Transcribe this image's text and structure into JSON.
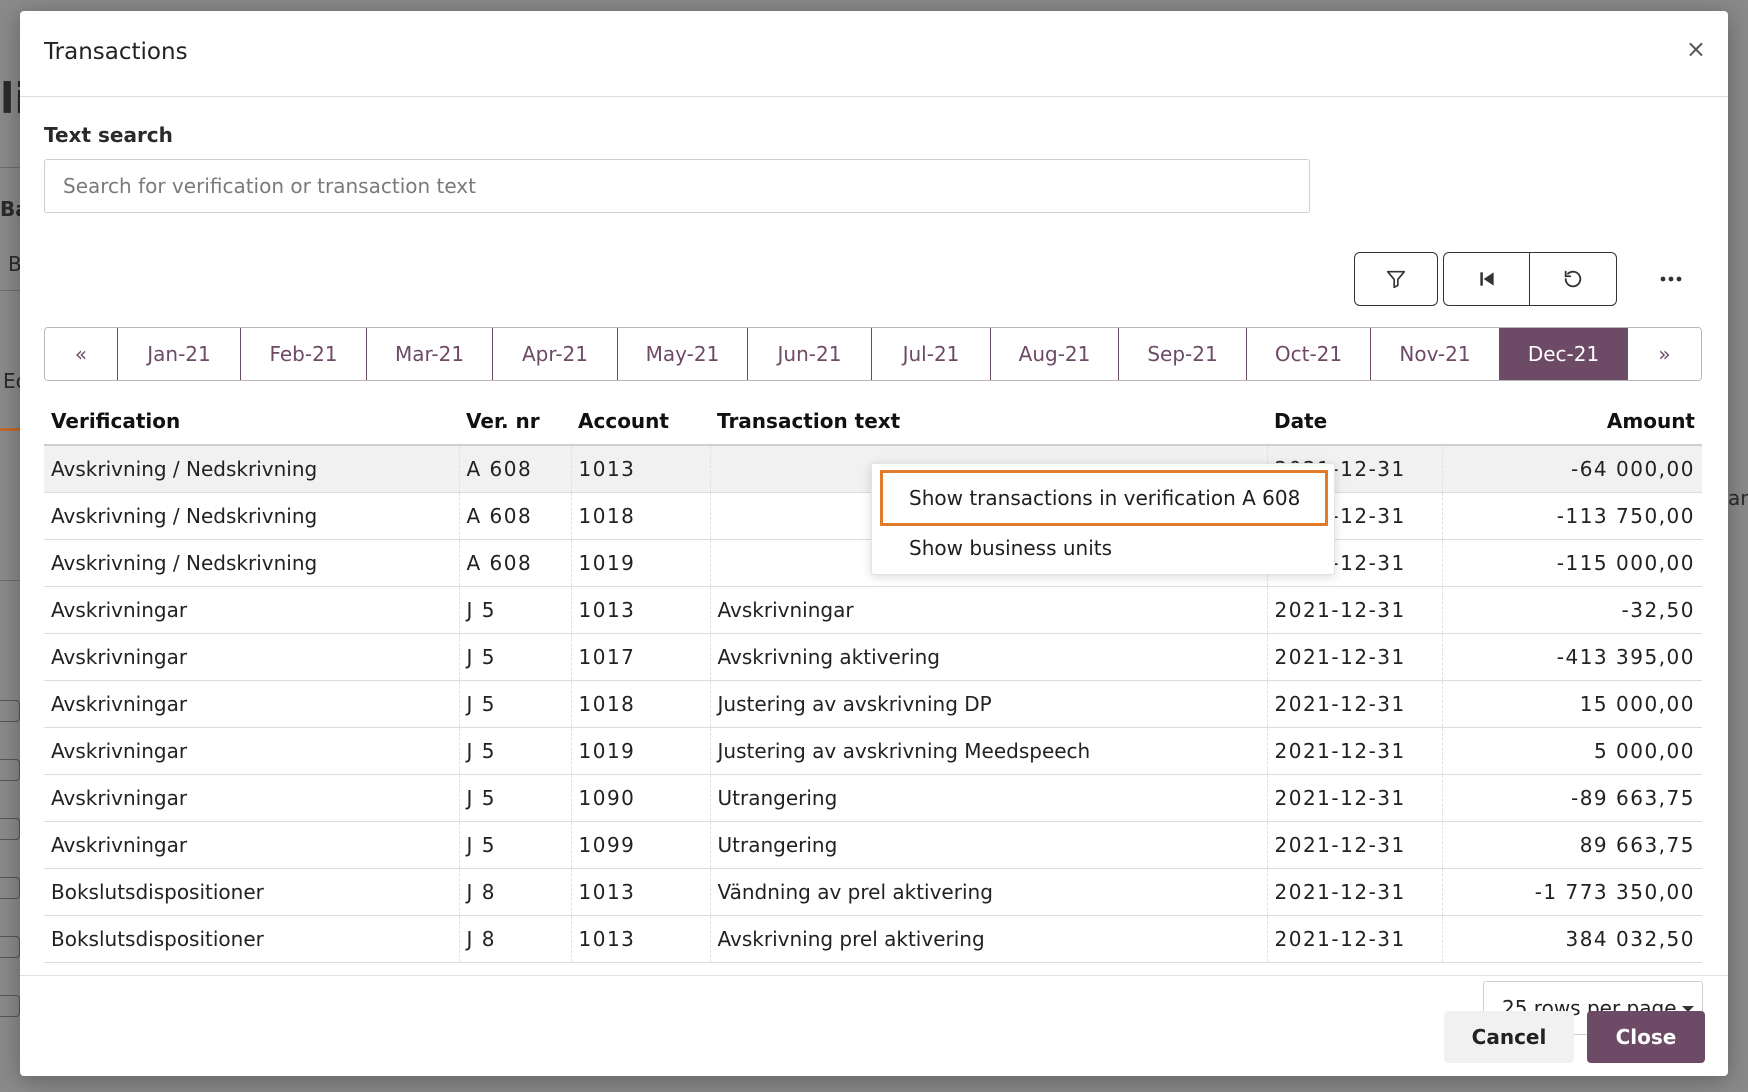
{
  "background": {
    "fragments": [
      "li",
      "Ba",
      "B",
      "Ec",
      "am"
    ]
  },
  "modal": {
    "title": "Transactions",
    "close_icon": "close-icon"
  },
  "search": {
    "label": "Text search",
    "placeholder": "Search for verification or transaction text",
    "value": ""
  },
  "toolbar": {
    "filter_icon": "filter-icon",
    "first_icon": "skip-first-icon",
    "reset_icon": "reset-icon",
    "more_icon": "more-icon"
  },
  "months": {
    "prev": "«",
    "next": "»",
    "items": [
      "Jan-21",
      "Feb-21",
      "Mar-21",
      "Apr-21",
      "May-21",
      "Jun-21",
      "Jul-21",
      "Aug-21",
      "Sep-21",
      "Oct-21",
      "Nov-21",
      "Dec-21"
    ],
    "active": "Dec-21"
  },
  "table": {
    "headers": {
      "verification": "Verification",
      "ver_nr": "Ver. nr",
      "account": "Account",
      "text": "Transaction text",
      "date": "Date",
      "amount": "Amount"
    },
    "rows": [
      {
        "verification": "Avskrivning / Nedskrivning",
        "ver_nr": "A 608",
        "account": "1013",
        "text": "",
        "date": "2021-12-31",
        "amount": "-64 000,00"
      },
      {
        "verification": "Avskrivning / Nedskrivning",
        "ver_nr": "A 608",
        "account": "1018",
        "text": "",
        "date": "2021-12-31",
        "amount": "-113 750,00"
      },
      {
        "verification": "Avskrivning / Nedskrivning",
        "ver_nr": "A 608",
        "account": "1019",
        "text": "",
        "date": "2021-12-31",
        "amount": "-115 000,00"
      },
      {
        "verification": "Avskrivningar",
        "ver_nr": "J 5",
        "account": "1013",
        "text": "Avskrivningar",
        "date": "2021-12-31",
        "amount": "-32,50"
      },
      {
        "verification": "Avskrivningar",
        "ver_nr": "J 5",
        "account": "1017",
        "text": "Avskrivning aktivering",
        "date": "2021-12-31",
        "amount": "-413 395,00"
      },
      {
        "verification": "Avskrivningar",
        "ver_nr": "J 5",
        "account": "1018",
        "text": "Justering av avskrivning DP",
        "date": "2021-12-31",
        "amount": "15 000,00"
      },
      {
        "verification": "Avskrivningar",
        "ver_nr": "J 5",
        "account": "1019",
        "text": "Justering av avskrivning Meedspeech",
        "date": "2021-12-31",
        "amount": "5 000,00"
      },
      {
        "verification": "Avskrivningar",
        "ver_nr": "J 5",
        "account": "1090",
        "text": "Utrangering",
        "date": "2021-12-31",
        "amount": "-89 663,75"
      },
      {
        "verification": "Avskrivningar",
        "ver_nr": "J 5",
        "account": "1099",
        "text": "Utrangering",
        "date": "2021-12-31",
        "amount": "89 663,75"
      },
      {
        "verification": "Bokslutsdispositioner",
        "ver_nr": "J 8",
        "account": "1013",
        "text": "Vändning av prel aktivering",
        "date": "2021-12-31",
        "amount": "-1 773 350,00"
      },
      {
        "verification": "Bokslutsdispositioner",
        "ver_nr": "J 8",
        "account": "1013",
        "text": "Avskrivning prel aktivering",
        "date": "2021-12-31",
        "amount": "384 032,50"
      }
    ]
  },
  "context_menu": {
    "items": [
      "Show transactions in verification A 608",
      "Show business units"
    ]
  },
  "pagination": {
    "rows_per_page": "25 rows per page"
  },
  "footer": {
    "cancel_label": "Cancel",
    "close_label": "Close"
  },
  "colors": {
    "accent": "#6d4a66",
    "focus_outline": "#e07b2a"
  }
}
